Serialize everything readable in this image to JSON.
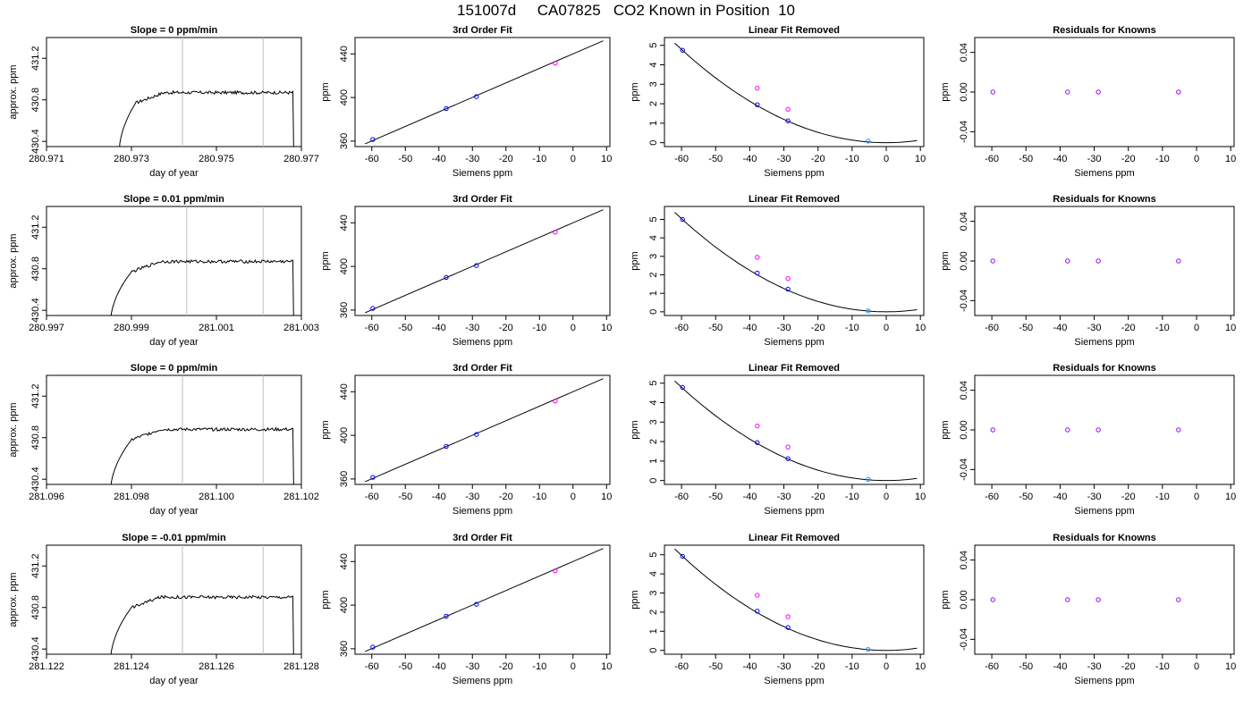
{
  "header": {
    "title": "151007d     CA07825   CO2 Known in Position  10"
  },
  "colors": {
    "trace": "#000000",
    "vline": "#bebebe",
    "point_blue": "#0000ff",
    "point_magenta": "#ff00ff",
    "point_lightblue": "#1e90ff",
    "point_purple": "#9a00ff"
  },
  "chart_data": [
    {
      "type": "line",
      "row": 0,
      "col": 0,
      "title": "Slope =  0  ppm/min",
      "xlabel": "day of year",
      "ylabel": "approx. ppm",
      "xlim": [
        280.971,
        280.977
      ],
      "ylim": [
        430.35,
        431.4
      ],
      "xticks": [
        "280.971",
        "280.973",
        "280.975",
        "280.977"
      ],
      "yticks": [
        "430.4",
        "430.8",
        "431.2"
      ],
      "x_start": 280.9727,
      "x_rise_end": 280.9731,
      "x_drop": 280.9768,
      "plateau": 430.87,
      "vlines": [
        280.9742,
        280.9761
      ]
    },
    {
      "type": "scatter",
      "row": 0,
      "col": 1,
      "title": "3rd Order Fit",
      "xlabel": "Siemens ppm",
      "ylabel": "ppm",
      "xlim": [
        -65,
        11
      ],
      "ylim": [
        355,
        455
      ],
      "xticks": [
        "-60",
        "-50",
        "-40",
        "-30",
        "-20",
        "-10",
        "0",
        "10"
      ],
      "yticks": [
        "360",
        "400",
        "440"
      ],
      "fit_line": {
        "x": [
          -62,
          9
        ],
        "y": [
          357.5,
          452
        ]
      },
      "points": [
        {
          "x": -59.7,
          "y": 361.5,
          "color": "point_blue"
        },
        {
          "x": -37.8,
          "y": 389.9,
          "color": "point_blue"
        },
        {
          "x": -28.8,
          "y": 400.8,
          "color": "point_blue"
        },
        {
          "x": -5.3,
          "y": 431.5,
          "color": "point_magenta"
        }
      ]
    },
    {
      "type": "scatter",
      "row": 0,
      "col": 2,
      "title": "Linear Fit Removed",
      "xlabel": "Siemens ppm",
      "ylabel": "ppm",
      "xlim": [
        -65,
        11
      ],
      "ylim": [
        -0.2,
        5.4
      ],
      "xticks": [
        "-60",
        "-50",
        "-40",
        "-30",
        "-20",
        "-10",
        "0",
        "10"
      ],
      "yticks": [
        "0",
        "1",
        "2",
        "3",
        "4",
        "5"
      ],
      "curve": {
        "k": 0.00133,
        "vertex": 0,
        "floor": 0.0
      },
      "points": [
        {
          "x": -59.7,
          "y": 4.75,
          "color": "point_blue"
        },
        {
          "x": -37.8,
          "y": 1.95,
          "color": "point_blue"
        },
        {
          "x": -28.8,
          "y": 1.12,
          "color": "point_blue"
        },
        {
          "x": -5.3,
          "y": 0.08,
          "color": "point_lightblue"
        },
        {
          "x": -37.8,
          "y": 2.8,
          "color": "point_magenta"
        },
        {
          "x": -28.8,
          "y": 1.72,
          "color": "point_magenta"
        }
      ]
    },
    {
      "type": "scatter",
      "row": 0,
      "col": 3,
      "title": "Residuals for Knowns",
      "xlabel": "Siemens ppm",
      "ylabel": "ppm",
      "xlim": [
        -65,
        11
      ],
      "ylim": [
        -0.055,
        0.055
      ],
      "xticks": [
        "-60",
        "-50",
        "-40",
        "-30",
        "-20",
        "-10",
        "0",
        "10"
      ],
      "yticks": [
        "-0.04",
        "0.00",
        "0.04"
      ],
      "points": [
        {
          "x": -59.7,
          "y": 0,
          "color": "point_purple"
        },
        {
          "x": -37.8,
          "y": 0,
          "color": "point_purple"
        },
        {
          "x": -28.8,
          "y": 0,
          "color": "point_purple"
        },
        {
          "x": -5.3,
          "y": 0,
          "color": "point_purple"
        }
      ]
    },
    {
      "type": "line",
      "row": 1,
      "col": 0,
      "title": "Slope =  0.01  ppm/min",
      "xlabel": "day of year",
      "ylabel": "approx. ppm",
      "xlim": [
        280.997,
        281.003
      ],
      "ylim": [
        430.35,
        431.4
      ],
      "xticks": [
        "280.997",
        "280.999",
        "281.001",
        "281.003"
      ],
      "yticks": [
        "430.4",
        "430.8",
        "431.2"
      ],
      "x_start": 280.9985,
      "x_rise_end": 280.999,
      "x_drop": 281.0028,
      "plateau": 430.87,
      "vlines": [
        281.0003,
        281.0021
      ]
    },
    {
      "type": "scatter",
      "row": 1,
      "col": 1,
      "title": "3rd Order Fit",
      "xlabel": "Siemens ppm",
      "ylabel": "ppm",
      "xlim": [
        -65,
        11
      ],
      "ylim": [
        355,
        455
      ],
      "xticks": [
        "-60",
        "-50",
        "-40",
        "-30",
        "-20",
        "-10",
        "0",
        "10"
      ],
      "yticks": [
        "360",
        "400",
        "440"
      ],
      "fit_line": {
        "x": [
          -62,
          9
        ],
        "y": [
          357.5,
          452
        ]
      },
      "points": [
        {
          "x": -59.7,
          "y": 361.5,
          "color": "point_blue"
        },
        {
          "x": -37.8,
          "y": 389.9,
          "color": "point_blue"
        },
        {
          "x": -28.8,
          "y": 400.8,
          "color": "point_blue"
        },
        {
          "x": -5.3,
          "y": 431.5,
          "color": "point_magenta"
        }
      ]
    },
    {
      "type": "scatter",
      "row": 1,
      "col": 2,
      "title": "Linear Fit Removed",
      "xlabel": "Siemens ppm",
      "ylabel": "ppm",
      "xlim": [
        -65,
        11
      ],
      "ylim": [
        -0.2,
        5.7
      ],
      "xticks": [
        "-60",
        "-50",
        "-40",
        "-30",
        "-20",
        "-10",
        "0",
        "10"
      ],
      "yticks": [
        "0",
        "1",
        "2",
        "3",
        "4",
        "5"
      ],
      "curve": {
        "k": 0.0014,
        "vertex": 0,
        "floor": 0.0
      },
      "points": [
        {
          "x": -59.7,
          "y": 5.0,
          "color": "point_blue"
        },
        {
          "x": -37.8,
          "y": 2.1,
          "color": "point_blue"
        },
        {
          "x": -28.8,
          "y": 1.22,
          "color": "point_blue"
        },
        {
          "x": -5.3,
          "y": 0.05,
          "color": "point_lightblue"
        },
        {
          "x": -37.8,
          "y": 2.95,
          "color": "point_magenta"
        },
        {
          "x": -28.8,
          "y": 1.8,
          "color": "point_magenta"
        }
      ]
    },
    {
      "type": "scatter",
      "row": 1,
      "col": 3,
      "title": "Residuals for Knowns",
      "xlabel": "Siemens ppm",
      "ylabel": "ppm",
      "xlim": [
        -65,
        11
      ],
      "ylim": [
        -0.055,
        0.055
      ],
      "xticks": [
        "-60",
        "-50",
        "-40",
        "-30",
        "-20",
        "-10",
        "0",
        "10"
      ],
      "yticks": [
        "-0.04",
        "0.00",
        "0.04"
      ],
      "points": [
        {
          "x": -59.7,
          "y": 0,
          "color": "point_purple"
        },
        {
          "x": -37.8,
          "y": 0,
          "color": "point_purple"
        },
        {
          "x": -28.8,
          "y": 0,
          "color": "point_purple"
        },
        {
          "x": -5.3,
          "y": 0,
          "color": "point_purple"
        }
      ]
    },
    {
      "type": "line",
      "row": 2,
      "col": 0,
      "title": "Slope =  0  ppm/min",
      "xlabel": "day of year",
      "ylabel": "approx. ppm",
      "xlim": [
        281.096,
        281.102
      ],
      "ylim": [
        430.35,
        431.4
      ],
      "xticks": [
        "281.096",
        "281.098",
        "281.100",
        "281.102"
      ],
      "yticks": [
        "430.4",
        "430.8",
        "431.2"
      ],
      "x_start": 281.0975,
      "x_rise_end": 281.098,
      "x_drop": 281.1018,
      "plateau": 430.88,
      "vlines": [
        281.0992,
        281.1011
      ]
    },
    {
      "type": "scatter",
      "row": 2,
      "col": 1,
      "title": "3rd Order Fit",
      "xlabel": "Siemens ppm",
      "ylabel": "ppm",
      "xlim": [
        -65,
        11
      ],
      "ylim": [
        355,
        455
      ],
      "xticks": [
        "-60",
        "-50",
        "-40",
        "-30",
        "-20",
        "-10",
        "0",
        "10"
      ],
      "yticks": [
        "360",
        "400",
        "440"
      ],
      "fit_line": {
        "x": [
          -62,
          9
        ],
        "y": [
          357.5,
          452
        ]
      },
      "points": [
        {
          "x": -59.7,
          "y": 361.5,
          "color": "point_blue"
        },
        {
          "x": -37.8,
          "y": 389.9,
          "color": "point_blue"
        },
        {
          "x": -28.8,
          "y": 400.8,
          "color": "point_blue"
        },
        {
          "x": -5.3,
          "y": 431.5,
          "color": "point_magenta"
        }
      ]
    },
    {
      "type": "scatter",
      "row": 2,
      "col": 2,
      "title": "Linear Fit Removed",
      "xlabel": "Siemens ppm",
      "ylabel": "ppm",
      "xlim": [
        -65,
        11
      ],
      "ylim": [
        -0.2,
        5.4
      ],
      "xticks": [
        "-60",
        "-50",
        "-40",
        "-30",
        "-20",
        "-10",
        "0",
        "10"
      ],
      "yticks": [
        "0",
        "1",
        "2",
        "3",
        "4",
        "5"
      ],
      "curve": {
        "k": 0.00133,
        "vertex": 0,
        "floor": 0.0
      },
      "points": [
        {
          "x": -59.7,
          "y": 4.78,
          "color": "point_blue"
        },
        {
          "x": -37.8,
          "y": 1.95,
          "color": "point_blue"
        },
        {
          "x": -28.8,
          "y": 1.12,
          "color": "point_blue"
        },
        {
          "x": -5.3,
          "y": 0.06,
          "color": "point_lightblue"
        },
        {
          "x": -37.8,
          "y": 2.8,
          "color": "point_magenta"
        },
        {
          "x": -28.8,
          "y": 1.72,
          "color": "point_magenta"
        }
      ]
    },
    {
      "type": "scatter",
      "row": 2,
      "col": 3,
      "title": "Residuals for Knowns",
      "xlabel": "Siemens ppm",
      "ylabel": "ppm",
      "xlim": [
        -65,
        11
      ],
      "ylim": [
        -0.055,
        0.055
      ],
      "xticks": [
        "-60",
        "-50",
        "-40",
        "-30",
        "-20",
        "-10",
        "0",
        "10"
      ],
      "yticks": [
        "-0.04",
        "0.00",
        "0.04"
      ],
      "points": [
        {
          "x": -59.7,
          "y": 0,
          "color": "point_purple"
        },
        {
          "x": -37.8,
          "y": 0,
          "color": "point_purple"
        },
        {
          "x": -28.8,
          "y": 0,
          "color": "point_purple"
        },
        {
          "x": -5.3,
          "y": 0,
          "color": "point_purple"
        }
      ]
    },
    {
      "type": "line",
      "row": 3,
      "col": 0,
      "title": "Slope =  -0.01  ppm/min",
      "xlabel": "day of year",
      "ylabel": "approx. ppm",
      "xlim": [
        281.122,
        281.128
      ],
      "ylim": [
        430.35,
        431.4
      ],
      "xticks": [
        "281.122",
        "281.124",
        "281.126",
        "281.128"
      ],
      "yticks": [
        "430.4",
        "430.8",
        "431.2"
      ],
      "x_start": 281.1235,
      "x_rise_end": 281.124,
      "x_drop": 281.1278,
      "plateau": 430.9,
      "vlines": [
        281.1252,
        281.1271
      ]
    },
    {
      "type": "scatter",
      "row": 3,
      "col": 1,
      "title": "3rd Order Fit",
      "xlabel": "Siemens ppm",
      "ylabel": "ppm",
      "xlim": [
        -65,
        11
      ],
      "ylim": [
        355,
        455
      ],
      "xticks": [
        "-60",
        "-50",
        "-40",
        "-30",
        "-20",
        "-10",
        "0",
        "10"
      ],
      "yticks": [
        "360",
        "400",
        "440"
      ],
      "fit_line": {
        "x": [
          -62,
          9
        ],
        "y": [
          357.5,
          452
        ]
      },
      "points": [
        {
          "x": -59.7,
          "y": 361.5,
          "color": "point_blue"
        },
        {
          "x": -37.8,
          "y": 389.9,
          "color": "point_blue"
        },
        {
          "x": -28.8,
          "y": 400.8,
          "color": "point_blue"
        },
        {
          "x": -5.3,
          "y": 431.5,
          "color": "point_magenta"
        }
      ]
    },
    {
      "type": "scatter",
      "row": 3,
      "col": 2,
      "title": "Linear Fit Removed",
      "xlabel": "Siemens ppm",
      "ylabel": "ppm",
      "xlim": [
        -65,
        11
      ],
      "ylim": [
        -0.2,
        5.5
      ],
      "xticks": [
        "-60",
        "-50",
        "-40",
        "-30",
        "-20",
        "-10",
        "0",
        "10"
      ],
      "yticks": [
        "0",
        "1",
        "2",
        "3",
        "4",
        "5"
      ],
      "curve": {
        "k": 0.00138,
        "vertex": 0,
        "floor": 0.0
      },
      "points": [
        {
          "x": -59.7,
          "y": 4.92,
          "color": "point_blue"
        },
        {
          "x": -37.8,
          "y": 2.05,
          "color": "point_blue"
        },
        {
          "x": -28.8,
          "y": 1.2,
          "color": "point_blue"
        },
        {
          "x": -5.3,
          "y": 0.05,
          "color": "point_lightblue"
        },
        {
          "x": -37.8,
          "y": 2.88,
          "color": "point_magenta"
        },
        {
          "x": -28.8,
          "y": 1.76,
          "color": "point_magenta"
        }
      ]
    },
    {
      "type": "scatter",
      "row": 3,
      "col": 3,
      "title": "Residuals for Knowns",
      "xlabel": "Siemens ppm",
      "ylabel": "ppm",
      "xlim": [
        -65,
        11
      ],
      "ylim": [
        -0.055,
        0.055
      ],
      "xticks": [
        "-60",
        "-50",
        "-40",
        "-30",
        "-20",
        "-10",
        "0",
        "10"
      ],
      "yticks": [
        "-0.04",
        "0.00",
        "0.04"
      ],
      "points": [
        {
          "x": -59.7,
          "y": 0,
          "color": "point_purple"
        },
        {
          "x": -37.8,
          "y": 0,
          "color": "point_purple"
        },
        {
          "x": -28.8,
          "y": 0,
          "color": "point_purple"
        },
        {
          "x": -5.3,
          "y": 0,
          "color": "point_purple"
        }
      ]
    }
  ]
}
